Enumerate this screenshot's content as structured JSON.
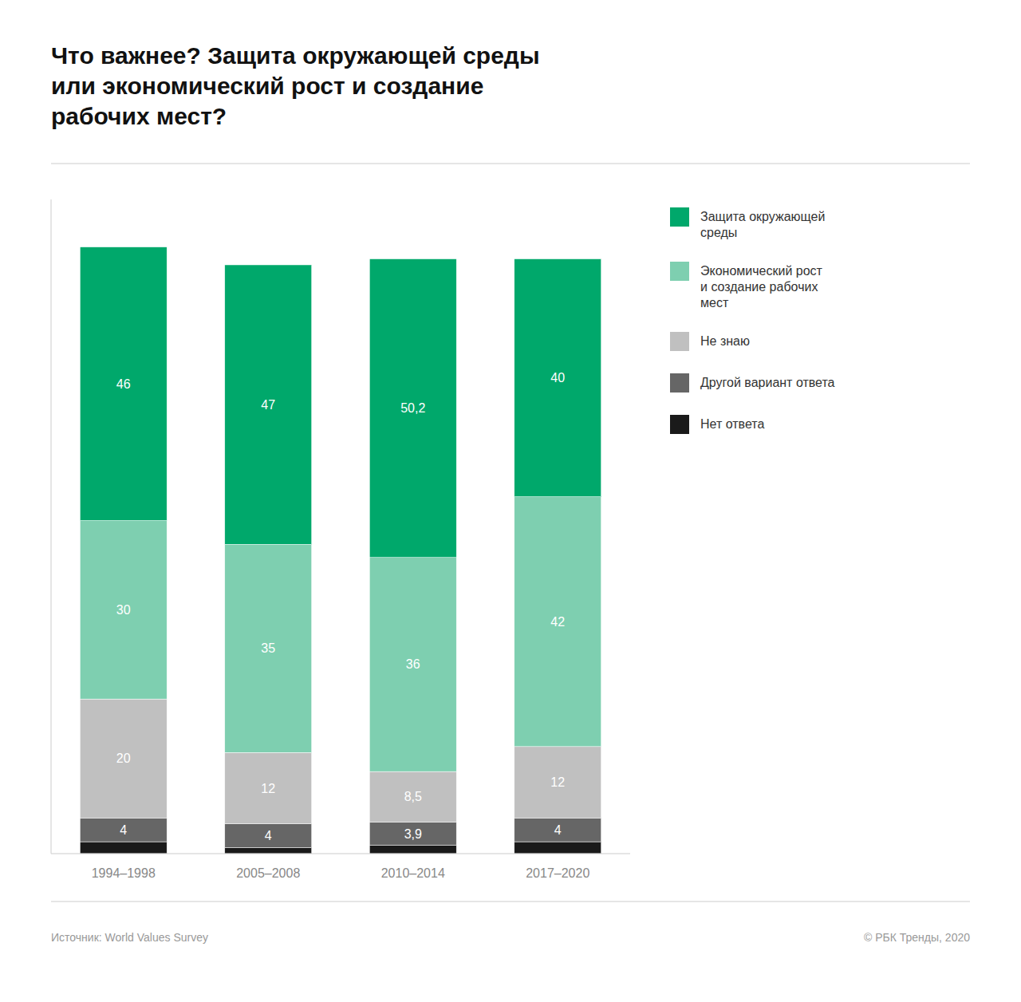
{
  "chart_data": {
    "type": "bar",
    "stacked": true,
    "title": "Что важнее? Защита окружающей среды\nили экономический рост и создание\nрабочих мест?",
    "categories": [
      "1994–1998",
      "2005–2008",
      "2010–2014",
      "2017–2020"
    ],
    "series": [
      {
        "name": "Нет ответа",
        "color": "#1a1a1a",
        "values": [
          2,
          1,
          1.4,
          2
        ],
        "data_labels": false
      },
      {
        "name": "Другой вариант ответа",
        "color": "#666666",
        "values": [
          4,
          4,
          3.9,
          4
        ],
        "value_labels": [
          "4",
          "4",
          "3,9",
          "4"
        ]
      },
      {
        "name": "Не знаю",
        "color": "#c0c0c0",
        "values": [
          20,
          12,
          8.5,
          12
        ],
        "value_labels": [
          "20",
          "12",
          "8,5",
          "12"
        ]
      },
      {
        "name": "Экономический рост\nи создание рабочих\nмест",
        "color": "#7ecfb0",
        "values": [
          30,
          35,
          36,
          42
        ]
      },
      {
        "name": "Защита окружающей\nсреды",
        "color": "#00a86b",
        "values": [
          46,
          47,
          50.2,
          40
        ],
        "value_labels": [
          "46",
          "47",
          "50,2",
          "40"
        ]
      }
    ],
    "ylim": [
      0,
      110
    ],
    "grid": false,
    "data_labels": true,
    "tick_labels": "x",
    "legend": "right",
    "source": "Источник:  World Values Survey",
    "copyright": "©  РБК Тренды, 2020"
  }
}
